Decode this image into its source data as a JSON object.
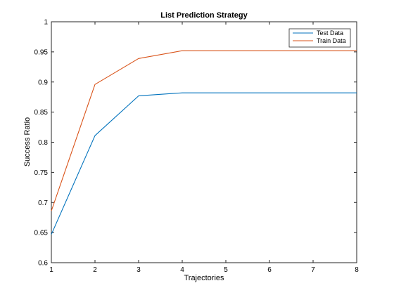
{
  "chart_data": {
    "type": "line",
    "title": "List Prediction Strategy",
    "xlabel": "Trajectories",
    "ylabel": "Success Ratio",
    "x": [
      1,
      2,
      3,
      4,
      5,
      6,
      7,
      8
    ],
    "xlim": [
      1,
      8
    ],
    "ylim": [
      0.6,
      1
    ],
    "xticks": [
      "1",
      "2",
      "3",
      "4",
      "5",
      "6",
      "7",
      "8"
    ],
    "yticks": [
      "0.6",
      "0.65",
      "0.7",
      "0.75",
      "0.8",
      "0.85",
      "0.9",
      "0.95",
      "1"
    ],
    "grid": false,
    "legend_position": "top-right",
    "series": [
      {
        "name": "Test Data",
        "color": "#0072bd",
        "values": [
          0.647,
          0.811,
          0.877,
          0.882,
          0.882,
          0.882,
          0.882,
          0.882
        ]
      },
      {
        "name": "Train Data",
        "color": "#d95319",
        "values": [
          0.686,
          0.896,
          0.939,
          0.952,
          0.952,
          0.952,
          0.952,
          0.952
        ]
      }
    ]
  }
}
